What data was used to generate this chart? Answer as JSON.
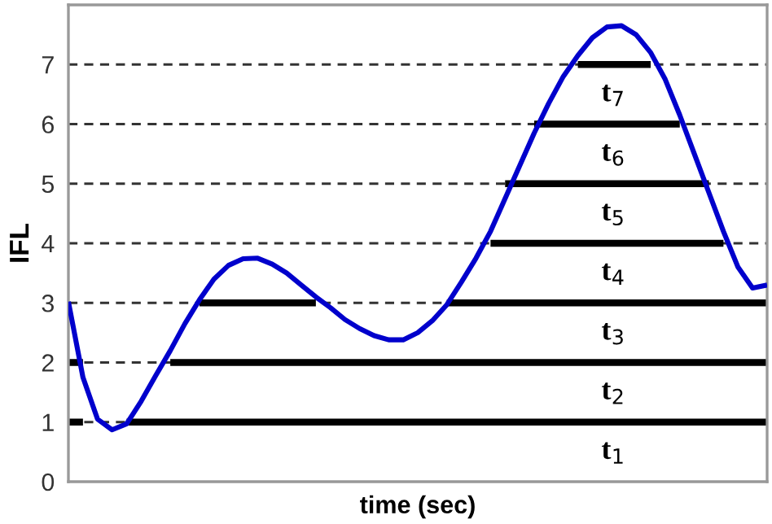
{
  "chart_data": {
    "type": "line",
    "xlabel": "time (sec)",
    "ylabel": "IFL",
    "categories": [
      null,
      null,
      null,
      null,
      null,
      null,
      null,
      null,
      null,
      null,
      null,
      null,
      null,
      null,
      null,
      null,
      null,
      null,
      null,
      null,
      null,
      null,
      null,
      null,
      null,
      null,
      null,
      null,
      null,
      null,
      null,
      null,
      null,
      null,
      null,
      null,
      null,
      null,
      null,
      null,
      null,
      null,
      null,
      null,
      null,
      null,
      null,
      null,
      null
    ],
    "ylim": [
      0,
      8
    ],
    "yticks": [
      0,
      1,
      2,
      3,
      4,
      5,
      6,
      7
    ],
    "tick_labels": "y",
    "grid": false,
    "legend": false,
    "marker": "none",
    "series": [
      {
        "color": "#0000cc",
        "line_style": "solid",
        "values": [
          3.02,
          1.75,
          1.05,
          0.87,
          0.97,
          1.35,
          1.78,
          2.2,
          2.65,
          3.05,
          3.4,
          3.63,
          3.74,
          3.75,
          3.65,
          3.5,
          3.3,
          3.1,
          2.92,
          2.72,
          2.57,
          2.45,
          2.38,
          2.38,
          2.5,
          2.7,
          2.97,
          3.35,
          3.75,
          4.2,
          4.75,
          5.3,
          5.85,
          6.35,
          6.8,
          7.15,
          7.45,
          7.63,
          7.65,
          7.5,
          7.2,
          6.75,
          6.15,
          5.5,
          4.85,
          4.2,
          3.6,
          3.25,
          3.3
        ]
      },
      {
        "color": "#000000",
        "line_style": "solid",
        "values": [
          1,
          1,
          null,
          null,
          1,
          1,
          1,
          1,
          1,
          1,
          1,
          1,
          1,
          1,
          1,
          1,
          1,
          1,
          1,
          1,
          1,
          1,
          1,
          1,
          1,
          1,
          1,
          1,
          1,
          1,
          1,
          1,
          1,
          1,
          1,
          1,
          1,
          1,
          1,
          1,
          1,
          1,
          1,
          1,
          1,
          1,
          1,
          1,
          1
        ]
      },
      {
        "color": "#000000",
        "line_style": "solid",
        "values": [
          2,
          2,
          null,
          null,
          null,
          null,
          null,
          2,
          2,
          2,
          2,
          2,
          2,
          2,
          2,
          2,
          2,
          2,
          2,
          2,
          2,
          2,
          2,
          2,
          2,
          2,
          2,
          2,
          2,
          2,
          2,
          2,
          2,
          2,
          2,
          2,
          2,
          2,
          2,
          2,
          2,
          2,
          2,
          2,
          2,
          2,
          2,
          2,
          2
        ]
      },
      {
        "color": "#000000",
        "line_style": "solid",
        "values": [
          null,
          null,
          null,
          null,
          null,
          null,
          null,
          null,
          null,
          3,
          3,
          3,
          3,
          3,
          3,
          3,
          3,
          3,
          null,
          null,
          null,
          null,
          null,
          null,
          null,
          null,
          3,
          3,
          3,
          3,
          3,
          3,
          3,
          3,
          3,
          3,
          3,
          3,
          3,
          3,
          3,
          3,
          3,
          3,
          3,
          3,
          3,
          3,
          3
        ]
      },
      {
        "color": "#000000",
        "line_style": "solid",
        "values": [
          null,
          null,
          null,
          null,
          null,
          null,
          null,
          null,
          null,
          null,
          null,
          null,
          null,
          null,
          null,
          null,
          null,
          null,
          null,
          null,
          null,
          null,
          null,
          null,
          null,
          null,
          null,
          null,
          null,
          4,
          4,
          4,
          4,
          4,
          4,
          4,
          4,
          4,
          4,
          4,
          4,
          4,
          4,
          4,
          4,
          4,
          null,
          null,
          null
        ]
      },
      {
        "color": "#000000",
        "line_style": "solid",
        "values": [
          null,
          null,
          null,
          null,
          null,
          null,
          null,
          null,
          null,
          null,
          null,
          null,
          null,
          null,
          null,
          null,
          null,
          null,
          null,
          null,
          null,
          null,
          null,
          null,
          null,
          null,
          null,
          null,
          null,
          null,
          5,
          5,
          5,
          5,
          5,
          5,
          5,
          5,
          5,
          5,
          5,
          5,
          5,
          5,
          5,
          null,
          null,
          null,
          null
        ]
      },
      {
        "color": "#000000",
        "line_style": "solid",
        "values": [
          null,
          null,
          null,
          null,
          null,
          null,
          null,
          null,
          null,
          null,
          null,
          null,
          null,
          null,
          null,
          null,
          null,
          null,
          null,
          null,
          null,
          null,
          null,
          null,
          null,
          null,
          null,
          null,
          null,
          null,
          null,
          null,
          6,
          6,
          6,
          6,
          6,
          6,
          6,
          6,
          6,
          6,
          6,
          null,
          null,
          null,
          null,
          null,
          null
        ]
      },
      {
        "color": "#000000",
        "line_style": "solid",
        "values": [
          null,
          null,
          null,
          null,
          null,
          null,
          null,
          null,
          null,
          null,
          null,
          null,
          null,
          null,
          null,
          null,
          null,
          null,
          null,
          null,
          null,
          null,
          null,
          null,
          null,
          null,
          null,
          null,
          null,
          null,
          null,
          null,
          null,
          null,
          null,
          7,
          7,
          7,
          7,
          7,
          7,
          null,
          null,
          null,
          null,
          null,
          null,
          null,
          null
        ]
      }
    ],
    "ref_lines": [
      {
        "axis": "y",
        "value": 1,
        "color": "#333333",
        "line_style": "dashed"
      },
      {
        "axis": "y",
        "value": 2,
        "color": "#333333",
        "line_style": "dashed"
      },
      {
        "axis": "y",
        "value": 3,
        "color": "#333333",
        "line_style": "dashed"
      },
      {
        "axis": "y",
        "value": 4,
        "color": "#333333",
        "line_style": "dashed"
      },
      {
        "axis": "y",
        "value": 5,
        "color": "#333333",
        "line_style": "dashed"
      },
      {
        "axis": "y",
        "value": 6,
        "color": "#333333",
        "line_style": "dashed"
      },
      {
        "axis": "y",
        "value": 7,
        "color": "#333333",
        "line_style": "dashed"
      }
    ],
    "annotations": [
      "t$_{1}$",
      "t$_{2}$",
      "t$_{3}$",
      "t$_{4}$",
      "t$_{5}$",
      "t$_{6}$",
      "t$_{7}$"
    ]
  }
}
